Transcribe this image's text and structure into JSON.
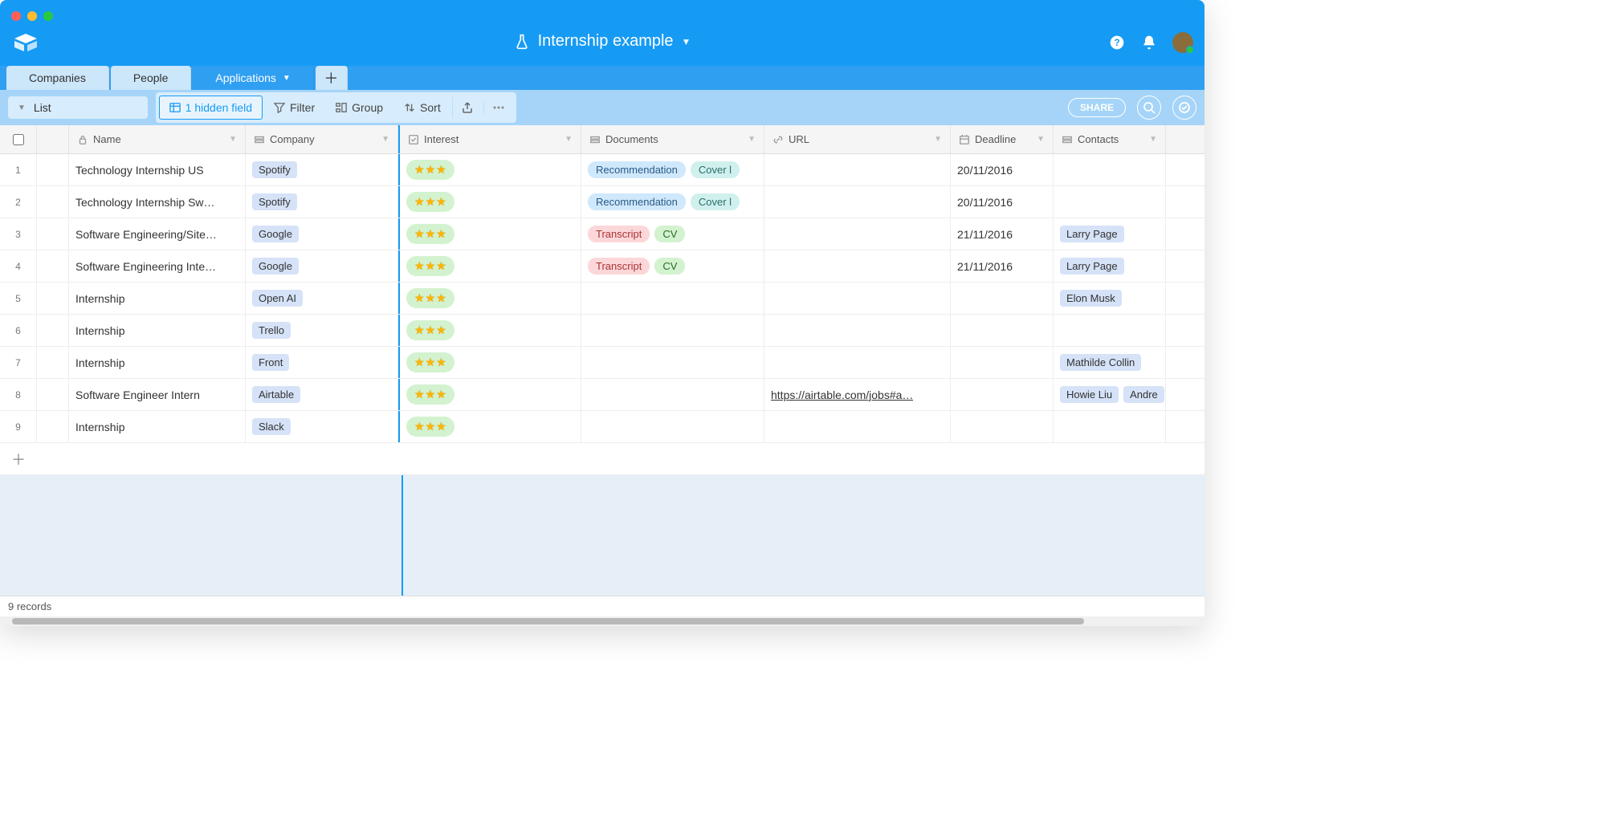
{
  "colors": {
    "header_bg": "#169bf4",
    "tabs_bg": "#2f9ff2",
    "toolbar_bg": "#a5d4f8",
    "grid_bg": "#e6eff7",
    "accent": "#169bf4"
  },
  "window": {
    "traffic_colors": [
      "#ff5f57",
      "#ffbd2e",
      "#28c940"
    ]
  },
  "header": {
    "title": "Internship example"
  },
  "tabs": [
    {
      "label": "Companies",
      "active": false
    },
    {
      "label": "People",
      "active": false
    },
    {
      "label": "Applications",
      "active": true
    }
  ],
  "toolbar": {
    "view_label": "List",
    "hidden_field_label": "1 hidden field",
    "filter_label": "Filter",
    "group_label": "Group",
    "sort_label": "Sort",
    "share_label": "SHARE"
  },
  "columns": {
    "name": "Name",
    "company": "Company",
    "interest": "Interest",
    "documents": "Documents",
    "url": "URL",
    "deadline": "Deadline",
    "contacts": "Contacts"
  },
  "tag_styles": {
    "Recommendation": "tag-blue",
    "Cover l": "tag-teal",
    "Transcript": "tag-red",
    "CV": "tag-green"
  },
  "rows": [
    {
      "num": "1",
      "name": "Technology Internship US",
      "company": "Spotify",
      "stars": 3,
      "documents": [
        "Recommendation",
        "Cover l"
      ],
      "url": "",
      "deadline": "20/11/2016",
      "contacts": []
    },
    {
      "num": "2",
      "name": "Technology Internship Sw…",
      "company": "Spotify",
      "stars": 3,
      "documents": [
        "Recommendation",
        "Cover l"
      ],
      "url": "",
      "deadline": "20/11/2016",
      "contacts": []
    },
    {
      "num": "3",
      "name": "Software Engineering/Site…",
      "company": "Google",
      "stars": 3,
      "documents": [
        "Transcript",
        "CV"
      ],
      "url": "",
      "deadline": "21/11/2016",
      "contacts": [
        "Larry Page"
      ]
    },
    {
      "num": "4",
      "name": "Software Engineering Inte…",
      "company": "Google",
      "stars": 3,
      "documents": [
        "Transcript",
        "CV"
      ],
      "url": "",
      "deadline": "21/11/2016",
      "contacts": [
        "Larry Page"
      ]
    },
    {
      "num": "5",
      "name": "Internship",
      "company": "Open AI",
      "stars": 3,
      "documents": [],
      "url": "",
      "deadline": "",
      "contacts": [
        "Elon Musk"
      ]
    },
    {
      "num": "6",
      "name": "Internship",
      "company": "Trello",
      "stars": 3,
      "documents": [],
      "url": "",
      "deadline": "",
      "contacts": []
    },
    {
      "num": "7",
      "name": "Internship",
      "company": "Front",
      "stars": 3,
      "documents": [],
      "url": "",
      "deadline": "",
      "contacts": [
        "Mathilde Collin"
      ]
    },
    {
      "num": "8",
      "name": "Software Engineer Intern",
      "company": "Airtable",
      "stars": 3,
      "documents": [],
      "url": "https://airtable.com/jobs#a…",
      "deadline": "",
      "contacts": [
        "Howie Liu",
        "Andre"
      ]
    },
    {
      "num": "9",
      "name": "Internship",
      "company": "Slack",
      "stars": 3,
      "documents": [],
      "url": "",
      "deadline": "",
      "contacts": []
    }
  ],
  "footer": {
    "record_count": "9 records"
  },
  "scrollbar": {
    "thumb_left_pct": 1,
    "thumb_width_pct": 89
  }
}
